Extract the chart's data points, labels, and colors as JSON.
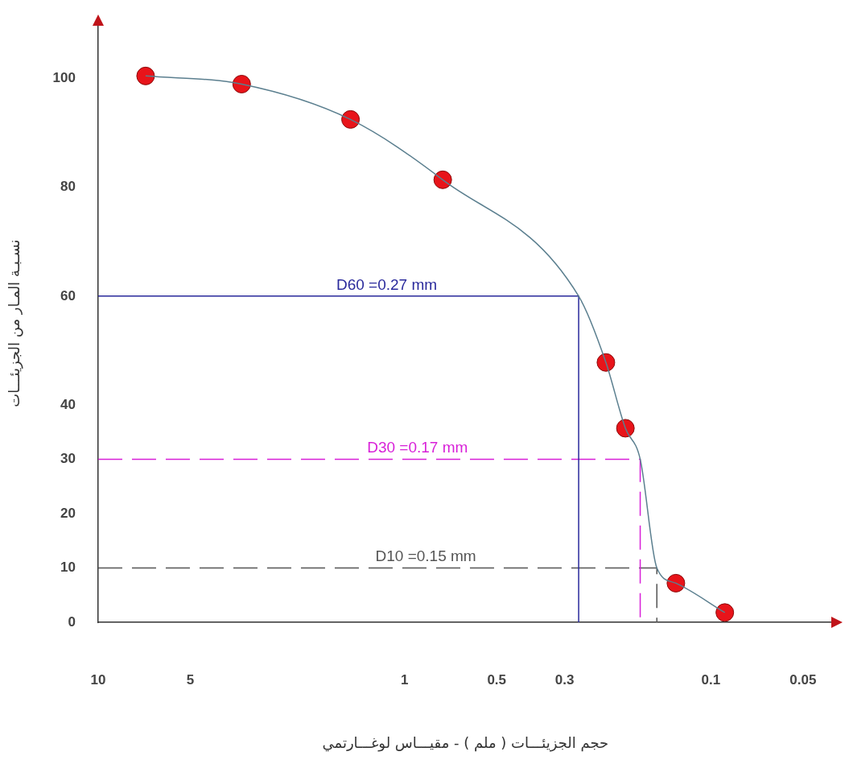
{
  "chart_data": {
    "type": "line",
    "xlabel": "حجم الجزيئـــات ( ملم ) - مقيـــاس لوغـــارتمي",
    "ylabel": "نسـبـة المـار من الجزيئـــات",
    "log": "x",
    "xlim": [
      10,
      0.04
    ],
    "xticks": [
      10,
      5,
      1,
      0.5,
      0.3,
      0.1,
      0.05
    ],
    "ylim": [
      0,
      110
    ],
    "yticks": [
      0,
      10,
      20,
      30,
      40,
      60,
      80,
      100
    ],
    "grid": false,
    "legend": false,
    "series": [
      {
        "color": "#5b7f8f",
        "marker": "none",
        "line_style": "solid",
        "x": [
          7,
          3.4,
          1.5,
          0.75,
          0.27,
          0.22,
          0.19,
          0.17,
          0.15,
          0.13,
          0.09
        ],
        "values": [
          100.5,
          99,
          92.5,
          81.4,
          60,
          47.8,
          35.7,
          30,
          10,
          7.2,
          1.8
        ]
      },
      {
        "type": "scatter",
        "color": "#e8141a",
        "marker": "circle",
        "x": [
          7,
          3.4,
          1.5,
          0.75,
          0.22,
          0.19,
          0.13,
          0.09
        ],
        "values": [
          100.5,
          99,
          92.5,
          81.4,
          47.8,
          35.7,
          7.2,
          1.8
        ]
      },
      {
        "name": "D60 =0.27 mm",
        "color": "#2a2a9c",
        "marker": "none",
        "line_style": "solid",
        "x": [
          10,
          0.27,
          0.27
        ],
        "values": [
          60,
          60,
          0
        ]
      },
      {
        "name": "D30 =0.17 mm",
        "color": "#d81fd8",
        "marker": "none",
        "line_style": "dashed",
        "x": [
          10,
          0.17,
          0.17
        ],
        "values": [
          30,
          30,
          0
        ]
      },
      {
        "name": "D10 =0.15 mm",
        "color": "#555555",
        "marker": "none",
        "line_style": "dashed",
        "x": [
          10,
          0.15,
          0.15
        ],
        "values": [
          10,
          10,
          0
        ]
      }
    ]
  }
}
